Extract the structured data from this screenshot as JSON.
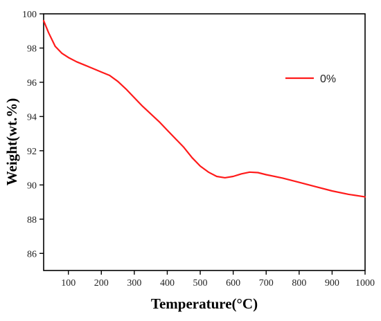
{
  "chart_data": {
    "type": "line",
    "xlabel": "Temperature(°C)",
    "ylabel": "Weight(wt.%)",
    "xlim": [
      25,
      1000
    ],
    "ylim": [
      85,
      100
    ],
    "x_ticks": [
      100,
      200,
      300,
      400,
      500,
      600,
      700,
      800,
      900,
      1000
    ],
    "y_ticks": [
      86,
      88,
      90,
      92,
      94,
      96,
      98,
      100
    ],
    "grid": false,
    "legend_position": "top-right",
    "series": [
      {
        "name": "0%",
        "color": "#ff1a1a",
        "x": [
          25,
          40,
          60,
          80,
          100,
          125,
          150,
          175,
          200,
          225,
          250,
          275,
          300,
          325,
          350,
          375,
          400,
          425,
          450,
          475,
          500,
          525,
          550,
          575,
          600,
          625,
          650,
          675,
          700,
          750,
          800,
          850,
          900,
          950,
          1000
        ],
        "y": [
          99.6,
          98.9,
          98.1,
          97.7,
          97.45,
          97.2,
          97.0,
          96.8,
          96.6,
          96.4,
          96.05,
          95.6,
          95.1,
          94.6,
          94.15,
          93.7,
          93.2,
          92.7,
          92.2,
          91.6,
          91.1,
          90.75,
          90.5,
          90.42,
          90.5,
          90.65,
          90.75,
          90.72,
          90.6,
          90.4,
          90.15,
          89.9,
          89.65,
          89.45,
          89.3
        ]
      }
    ]
  }
}
